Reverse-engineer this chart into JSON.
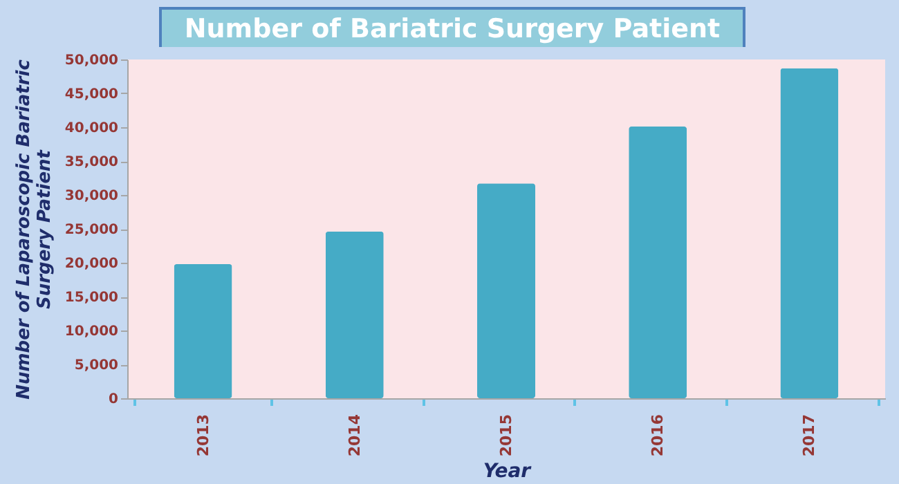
{
  "chart_data": {
    "type": "bar",
    "title": "Number of Bariatric Surgery Patient",
    "xlabel": "Year",
    "ylabel": "Number of Laparoscopic Bariatric Surgery Patient",
    "categories": [
      "2013",
      "2014",
      "2015",
      "2016",
      "2017"
    ],
    "values": [
      19800,
      24600,
      31700,
      40100,
      48700
    ],
    "color": "#45abc6",
    "ylim": [
      0,
      50000
    ],
    "yticks": [
      {
        "value": 0,
        "label": "0"
      },
      {
        "value": 5000,
        "label": "5,000"
      },
      {
        "value": 10000,
        "label": "10,000"
      },
      {
        "value": 15000,
        "label": "15,000"
      },
      {
        "value": 20000,
        "label": "20,000"
      },
      {
        "value": 25000,
        "label": "25,000"
      },
      {
        "value": 30000,
        "label": "30,000"
      },
      {
        "value": 35000,
        "label": "35,000"
      },
      {
        "value": 40000,
        "label": "40,000"
      },
      {
        "value": 45000,
        "label": "45,000"
      },
      {
        "value": 50000,
        "label": "50,000"
      }
    ],
    "grid": false
  }
}
